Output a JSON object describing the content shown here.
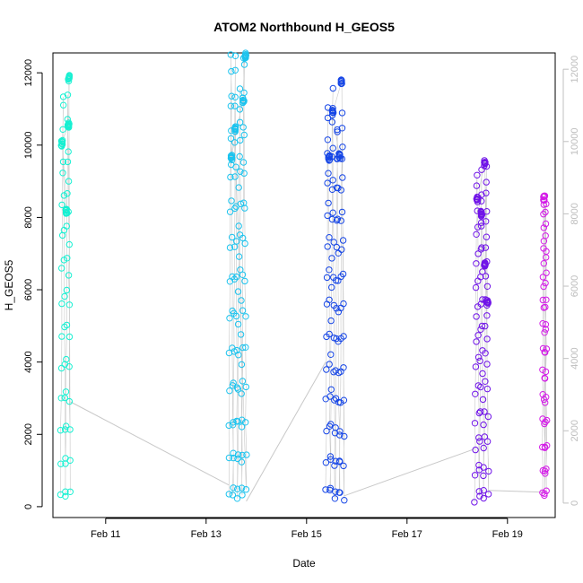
{
  "chart_data": {
    "type": "scatter",
    "title": "ATOM2 Northbound H_GEOS5",
    "xlabel": "Date",
    "ylabel": "H_GEOS5",
    "x_unit": "days in February",
    "xlim": [
      9.95,
      19.95
    ],
    "ylim": [
      -300,
      12550
    ],
    "y_ticks": [
      0,
      2000,
      4000,
      6000,
      8000,
      10000,
      12000
    ],
    "x_ticks": [
      {
        "value": 11,
        "label": "Feb 11"
      },
      {
        "value": 13,
        "label": "Feb 13"
      },
      {
        "value": 15,
        "label": "Feb 15"
      },
      {
        "value": 17,
        "label": "Feb 17"
      },
      {
        "value": 19,
        "label": "Feb 19"
      }
    ],
    "right_axis_ticks": [
      0,
      2000,
      4000,
      6000,
      8000,
      10000,
      12000
    ],
    "right_axis_color": "#c0c0c0",
    "connector_color": "#c8c8c8",
    "marker": "open-circle",
    "grid": false,
    "legend": "none",
    "flights": [
      {
        "day_start": 10.1,
        "day_end": 10.3,
        "h_min": 150,
        "h_max": 11980,
        "color": "#17f0d2",
        "clusters": [
          [
            10.27,
            11850
          ],
          [
            10.26,
            10550
          ],
          [
            10.13,
            10050
          ],
          [
            10.22,
            8150
          ]
        ]
      },
      {
        "day_start": 13.45,
        "day_end": 13.8,
        "h_min": 150,
        "h_max": 12500,
        "color": "#1cc3ee",
        "clusters": [
          [
            13.58,
            10450
          ],
          [
            13.5,
            9650
          ],
          [
            13.74,
            11250
          ],
          [
            13.78,
            12480
          ]
        ]
      },
      {
        "day_start": 15.38,
        "day_end": 15.75,
        "h_min": 150,
        "h_max": 11800,
        "color": "#1646e6",
        "clusters": [
          [
            15.7,
            11750
          ],
          [
            15.52,
            10950
          ],
          [
            15.66,
            9700
          ],
          [
            15.45,
            9650
          ]
        ]
      },
      {
        "day_start": 18.35,
        "day_end": 18.62,
        "h_min": 150,
        "h_max": 9550,
        "color": "#7014e8",
        "clusters": [
          [
            18.55,
            9500
          ],
          [
            18.4,
            8500
          ],
          [
            18.48,
            8100
          ],
          [
            18.55,
            6700
          ],
          [
            18.6,
            5650
          ]
        ]
      },
      {
        "day_start": 19.7,
        "day_end": 19.78,
        "h_min": 150,
        "h_max": 8600,
        "color": "#d41ce8",
        "clusters": [
          [
            19.73,
            8550
          ]
        ]
      }
    ],
    "gaps": [
      {
        "from": [
          10.3,
          2900
        ],
        "to": [
          13.45,
          600
        ]
      },
      {
        "from": [
          13.8,
          150
        ],
        "to": [
          15.38,
          4000
        ]
      },
      {
        "from": [
          15.75,
          300
        ],
        "to": [
          18.35,
          1600
        ]
      },
      {
        "from": [
          18.62,
          450
        ],
        "to": [
          19.7,
          400
        ]
      }
    ]
  }
}
